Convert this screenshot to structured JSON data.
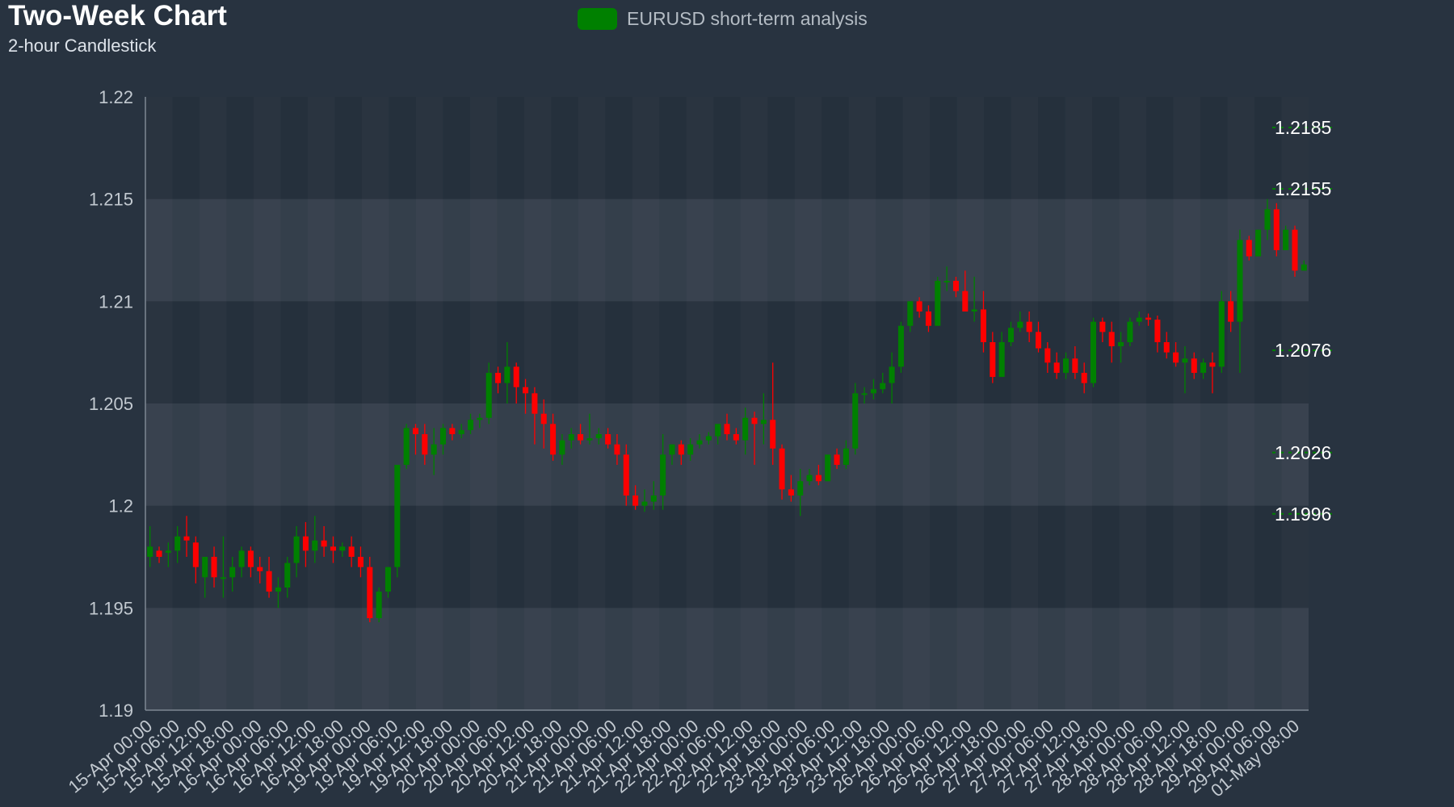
{
  "chart_data": {
    "type": "candlestick",
    "title": "Two-Week Chart",
    "subtitle": "2-hour Candlestick",
    "legend": {
      "label": "EURUSD short-term analysis",
      "color": "#008000",
      "placement": "top-center"
    },
    "colors": {
      "up": "#008000",
      "down": "#ff0000",
      "background": "#283340"
    },
    "ylim": [
      1.19,
      1.22
    ],
    "yticks": [
      "1.22",
      "1.215",
      "1.21",
      "1.205",
      "1.2",
      "1.195",
      "1.19"
    ],
    "xtick_labels": [
      "15-Apr 00:00",
      "15-Apr 06:00",
      "15-Apr 12:00",
      "15-Apr 18:00",
      "16-Apr 00:00",
      "16-Apr 06:00",
      "16-Apr 12:00",
      "16-Apr 18:00",
      "19-Apr 00:00",
      "19-Apr 06:00",
      "19-Apr 12:00",
      "19-Apr 18:00",
      "20-Apr 00:00",
      "20-Apr 06:00",
      "20-Apr 12:00",
      "20-Apr 18:00",
      "21-Apr 00:00",
      "21-Apr 06:00",
      "21-Apr 12:00",
      "21-Apr 18:00",
      "22-Apr 00:00",
      "22-Apr 06:00",
      "22-Apr 12:00",
      "22-Apr 18:00",
      "23-Apr 00:00",
      "23-Apr 06:00",
      "23-Apr 12:00",
      "23-Apr 18:00",
      "26-Apr 00:00",
      "26-Apr 06:00",
      "26-Apr 12:00",
      "26-Apr 18:00",
      "27-Apr 00:00",
      "27-Apr 06:00",
      "27-Apr 12:00",
      "27-Apr 18:00",
      "28-Apr 00:00",
      "28-Apr 06:00",
      "28-Apr 12:00",
      "28-Apr 18:00",
      "29-Apr 00:00",
      "29-Apr 06:00",
      "01-May 08:00"
    ],
    "levels": [
      {
        "label": "1.2185",
        "value": 1.2185
      },
      {
        "label": "1.2155",
        "value": 1.2155
      },
      {
        "label": "1.2076",
        "value": 1.2076
      },
      {
        "label": "1.2026",
        "value": 1.2026
      },
      {
        "label": "1.1996",
        "value": 1.1996
      }
    ],
    "grid": true,
    "candles": [
      [
        1.1975,
        1.199,
        1.198,
        1.197
      ],
      [
        1.1978,
        1.198,
        1.1975,
        1.1972
      ],
      [
        1.1977,
        1.1982,
        1.1978,
        1.197
      ],
      [
        1.1978,
        1.199,
        1.1985,
        1.1972
      ],
      [
        1.1985,
        1.1995,
        1.1983,
        1.1975
      ],
      [
        1.1982,
        1.1985,
        1.197,
        1.1962
      ],
      [
        1.1965,
        1.1975,
        1.1975,
        1.1955
      ],
      [
        1.1975,
        1.198,
        1.1965,
        1.196
      ],
      [
        1.1965,
        1.1985,
        1.1965,
        1.1955
      ],
      [
        1.1965,
        1.1975,
        1.197,
        1.1958
      ],
      [
        1.197,
        1.198,
        1.1978,
        1.1965
      ],
      [
        1.1978,
        1.198,
        1.197,
        1.1965
      ],
      [
        1.197,
        1.1975,
        1.1968,
        1.1962
      ],
      [
        1.1968,
        1.1975,
        1.1958,
        1.1955
      ],
      [
        1.1958,
        1.1965,
        1.196,
        1.195
      ],
      [
        1.196,
        1.1975,
        1.1972,
        1.1955
      ],
      [
        1.1972,
        1.199,
        1.1985,
        1.1965
      ],
      [
        1.1985,
        1.1992,
        1.1978,
        1.197
      ],
      [
        1.1978,
        1.1995,
        1.1983,
        1.1972
      ],
      [
        1.1983,
        1.199,
        1.198,
        1.1975
      ],
      [
        1.198,
        1.1985,
        1.1978,
        1.1972
      ],
      [
        1.1978,
        1.1982,
        1.198,
        1.1975
      ],
      [
        1.198,
        1.1985,
        1.1975,
        1.197
      ],
      [
        1.1975,
        1.198,
        1.197,
        1.1965
      ],
      [
        1.197,
        1.1975,
        1.1945,
        1.1943
      ],
      [
        1.1945,
        1.196,
        1.1958,
        1.1943
      ],
      [
        1.1958,
        1.197,
        1.197,
        1.1955
      ],
      [
        1.197,
        1.202,
        1.202,
        1.1965
      ],
      [
        1.202,
        1.204,
        1.2038,
        1.2018
      ],
      [
        1.2038,
        1.204,
        1.2035,
        1.2025
      ],
      [
        1.2035,
        1.204,
        1.2025,
        1.202
      ],
      [
        1.2025,
        1.2038,
        1.203,
        1.2015
      ],
      [
        1.203,
        1.204,
        1.2038,
        1.2025
      ],
      [
        1.2038,
        1.204,
        1.2035,
        1.2032
      ],
      [
        1.2035,
        1.204,
        1.2037,
        1.2033
      ],
      [
        1.2037,
        1.2045,
        1.2042,
        1.2035
      ],
      [
        1.2042,
        1.2045,
        1.2043,
        1.2038
      ],
      [
        1.2043,
        1.207,
        1.2065,
        1.204
      ],
      [
        1.2065,
        1.2068,
        1.206,
        1.2055
      ],
      [
        1.206,
        1.208,
        1.2068,
        1.205
      ],
      [
        1.2068,
        1.207,
        1.2058,
        1.205
      ],
      [
        1.2058,
        1.2062,
        1.2055,
        1.2045
      ],
      [
        1.2055,
        1.2058,
        1.2045,
        1.203
      ],
      [
        1.2045,
        1.2052,
        1.204,
        1.2028
      ],
      [
        1.204,
        1.2045,
        1.2025,
        1.2022
      ],
      [
        1.2025,
        1.2035,
        1.2032,
        1.202
      ],
      [
        1.2032,
        1.2038,
        1.2035,
        1.2028
      ],
      [
        1.2035,
        1.204,
        1.2032,
        1.203
      ],
      [
        1.2032,
        1.2045,
        1.2033,
        1.203
      ],
      [
        1.2033,
        1.2038,
        1.2035,
        1.203
      ],
      [
        1.2035,
        1.2038,
        1.203,
        1.2028
      ],
      [
        1.203,
        1.2035,
        1.2025,
        1.202
      ],
      [
        1.2025,
        1.203,
        1.2005,
        1.2
      ],
      [
        1.2005,
        1.201,
        1.2,
        1.1998
      ],
      [
        1.2,
        1.2008,
        1.2002,
        1.1997
      ],
      [
        1.2002,
        1.2012,
        1.2005,
        1.1998
      ],
      [
        1.2005,
        1.2035,
        1.2025,
        1.1998
      ],
      [
        1.2025,
        1.203,
        1.203,
        1.202
      ],
      [
        1.203,
        1.2032,
        1.2025,
        1.202
      ],
      [
        1.2025,
        1.2033,
        1.203,
        1.2022
      ],
      [
        1.203,
        1.2035,
        1.2032,
        1.2028
      ],
      [
        1.2032,
        1.2036,
        1.2034,
        1.203
      ],
      [
        1.2034,
        1.204,
        1.204,
        1.203
      ],
      [
        1.204,
        1.2045,
        1.2035,
        1.2032
      ],
      [
        1.2035,
        1.2038,
        1.2032,
        1.203
      ],
      [
        1.2032,
        1.2048,
        1.2043,
        1.2025
      ],
      [
        1.2043,
        1.2046,
        1.204,
        1.202
      ],
      [
        1.204,
        1.2055,
        1.2042,
        1.203
      ],
      [
        1.2042,
        1.207,
        1.2028,
        1.202
      ],
      [
        1.2028,
        1.203,
        1.2008,
        1.2003
      ],
      [
        1.2008,
        1.2015,
        1.2005,
        1.2002
      ],
      [
        1.2005,
        1.2018,
        1.2012,
        1.1995
      ],
      [
        1.2012,
        1.2018,
        1.2015,
        1.201
      ],
      [
        1.2015,
        1.202,
        1.2012,
        1.201
      ],
      [
        1.2012,
        1.2025,
        1.2025,
        1.2012
      ],
      [
        1.2025,
        1.2028,
        1.202,
        1.2018
      ],
      [
        1.202,
        1.2032,
        1.2028,
        1.2018
      ],
      [
        1.2028,
        1.206,
        1.2055,
        1.2025
      ],
      [
        1.2055,
        1.2058,
        1.2055,
        1.205
      ],
      [
        1.2055,
        1.2062,
        1.2057,
        1.2052
      ],
      [
        1.2057,
        1.2065,
        1.206,
        1.2055
      ],
      [
        1.206,
        1.2075,
        1.2068,
        1.205
      ],
      [
        1.2068,
        1.209,
        1.2088,
        1.2065
      ],
      [
        1.2088,
        1.21,
        1.21,
        1.2085
      ],
      [
        1.21,
        1.2102,
        1.2095,
        1.2092
      ],
      [
        1.2095,
        1.2098,
        1.2088,
        1.2085
      ],
      [
        1.2088,
        1.2112,
        1.211,
        1.2088
      ],
      [
        1.211,
        1.2117,
        1.211,
        1.2105
      ],
      [
        1.211,
        1.2112,
        1.2105,
        1.2102
      ],
      [
        1.2105,
        1.2115,
        1.2095,
        1.2095
      ],
      [
        1.2095,
        1.2112,
        1.2096,
        1.209
      ],
      [
        1.2096,
        1.2105,
        1.208,
        1.2075
      ],
      [
        1.208,
        1.2085,
        1.2063,
        1.206
      ],
      [
        1.2063,
        1.2085,
        1.208,
        1.2063
      ],
      [
        1.208,
        1.209,
        1.2087,
        1.2078
      ],
      [
        1.2087,
        1.2095,
        1.209,
        1.2085
      ],
      [
        1.209,
        1.2095,
        1.2085,
        1.208
      ],
      [
        1.2085,
        1.209,
        1.2077,
        1.2075
      ],
      [
        1.2077,
        1.208,
        1.207,
        1.2065
      ],
      [
        1.207,
        1.2075,
        1.2065,
        1.2062
      ],
      [
        1.2065,
        1.2075,
        1.2072,
        1.2062
      ],
      [
        1.2072,
        1.2078,
        1.2065,
        1.2062
      ],
      [
        1.2065,
        1.207,
        1.206,
        1.2055
      ],
      [
        1.206,
        1.2092,
        1.209,
        1.2058
      ],
      [
        1.209,
        1.2092,
        1.2085,
        1.208
      ],
      [
        1.2085,
        1.209,
        1.2078,
        1.207
      ],
      [
        1.2078,
        1.2085,
        1.208,
        1.207
      ],
      [
        1.208,
        1.2092,
        1.209,
        1.2078
      ],
      [
        1.209,
        1.2095,
        1.2092,
        1.2088
      ],
      [
        1.2092,
        1.2094,
        1.2091,
        1.2088
      ],
      [
        1.2091,
        1.2093,
        1.208,
        1.2075
      ],
      [
        1.208,
        1.2085,
        1.2075,
        1.2072
      ],
      [
        1.2075,
        1.208,
        1.207,
        1.2068
      ],
      [
        1.207,
        1.2078,
        1.2072,
        1.2055
      ],
      [
        1.2072,
        1.2075,
        1.2065,
        1.2062
      ],
      [
        1.2065,
        1.2072,
        1.207,
        1.2062
      ],
      [
        1.207,
        1.2075,
        1.2068,
        1.2055
      ],
      [
        1.2068,
        1.2105,
        1.21,
        1.2065
      ],
      [
        1.21,
        1.2105,
        1.209,
        1.2085
      ],
      [
        1.209,
        1.2135,
        1.213,
        1.2065
      ],
      [
        1.213,
        1.2132,
        1.2122,
        1.212
      ],
      [
        1.2122,
        1.2135,
        1.2135,
        1.2122
      ],
      [
        1.2135,
        1.215,
        1.2145,
        1.213
      ],
      [
        1.2145,
        1.2148,
        1.2125,
        1.2122
      ],
      [
        1.2125,
        1.2137,
        1.2135,
        1.2125
      ],
      [
        1.2135,
        1.2137,
        1.2115,
        1.2112
      ],
      [
        1.2115,
        1.212,
        1.2118,
        1.2115
      ]
    ]
  }
}
